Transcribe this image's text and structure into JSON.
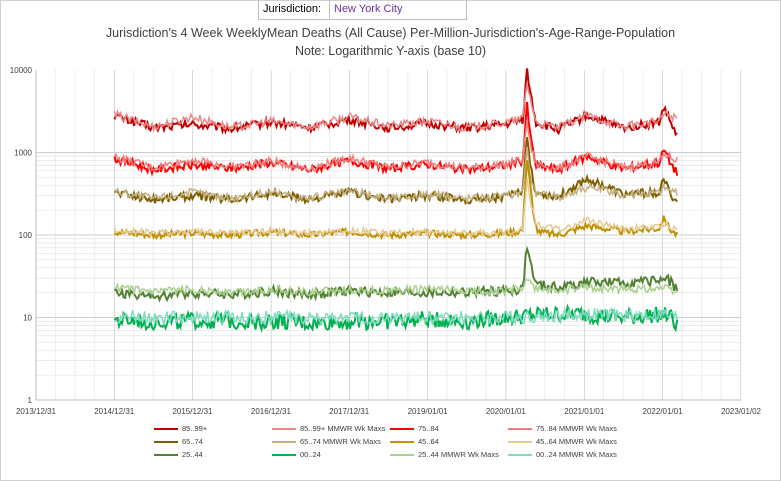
{
  "header": {
    "jurisdiction_label": "Jurisdiction:",
    "jurisdiction_value": "New York City"
  },
  "chart_data": {
    "type": "line",
    "title": "Jurisdiction's 4 Week WeeklyMean Deaths (All Cause) Per-Million-Jurisdiction's-Age-Range-Population",
    "subtitle": "Note: Logarithmic Y-axis (base 10)",
    "y_scale": "log10",
    "ylim": [
      1,
      10000
    ],
    "y_ticks": [
      "1",
      "10",
      "100",
      "1000",
      "10000"
    ],
    "xlim": [
      "2013-12-31",
      "2023-01-02"
    ],
    "x_ticks": [
      "2013/12/31",
      "2014/12/31",
      "2015/12/31",
      "2016/12/31",
      "2017/12/31",
      "2019/01/01",
      "2020/01/01",
      "2021/01/01",
      "2022/01/01",
      "2023/01/02"
    ],
    "grid": true,
    "legend_position": "bottom",
    "series": [
      {
        "name": "85..99+",
        "color": "#c00000",
        "width": 2,
        "base": 2200,
        "seasonal": 0.14,
        "noise": 0.05,
        "points": [
          [
            "2015-01-01",
            2800
          ],
          [
            "2015-07-01",
            2000
          ],
          [
            "2016-01-01",
            2200
          ],
          [
            "2016-07-01",
            1950
          ],
          [
            "2017-01-01",
            2350
          ],
          [
            "2017-07-01",
            2000
          ],
          [
            "2018-01-01",
            2500
          ],
          [
            "2018-07-01",
            2000
          ],
          [
            "2019-01-01",
            2250
          ],
          [
            "2019-07-01",
            1950
          ],
          [
            "2020-01-01",
            2200
          ],
          [
            "2020-03-20",
            2500
          ],
          [
            "2020-04-08",
            10000
          ],
          [
            "2020-04-25",
            5200
          ],
          [
            "2020-05-20",
            2300
          ],
          [
            "2020-09-01",
            1900
          ],
          [
            "2021-01-15",
            2800
          ],
          [
            "2021-07-01",
            2000
          ],
          [
            "2021-12-15",
            2300
          ],
          [
            "2022-01-10",
            3600
          ],
          [
            "2022-02-01",
            2500
          ],
          [
            "2022-03-10",
            1600
          ]
        ]
      },
      {
        "name": "85..99+ MMWR Wk Maxs",
        "color": "#e88a8a",
        "width": 1.5,
        "base": 2350,
        "seasonal": 0.14,
        "noise": 0.05,
        "points": [
          [
            "2015-01-01",
            2900
          ],
          [
            "2015-07-01",
            2050
          ],
          [
            "2016-01-01",
            2700
          ],
          [
            "2016-07-01",
            2000
          ],
          [
            "2017-01-01",
            2400
          ],
          [
            "2017-07-01",
            2050
          ],
          [
            "2018-01-01",
            2700
          ],
          [
            "2018-07-01",
            2100
          ],
          [
            "2019-01-01",
            2400
          ],
          [
            "2019-07-01",
            2000
          ],
          [
            "2020-01-01",
            2300
          ],
          [
            "2020-03-20",
            2600
          ],
          [
            "2020-04-08",
            7000
          ],
          [
            "2020-04-25",
            4500
          ],
          [
            "2020-05-20",
            2300
          ],
          [
            "2020-09-01",
            2000
          ],
          [
            "2021-01-15",
            2800
          ],
          [
            "2021-07-01",
            2050
          ],
          [
            "2021-12-15",
            2400
          ],
          [
            "2022-01-10",
            3000
          ],
          [
            "2022-03-10",
            2600
          ]
        ]
      },
      {
        "name": "75..84",
        "color": "#ff0000",
        "width": 2,
        "base": 700,
        "seasonal": 0.14,
        "noise": 0.05,
        "points": [
          [
            "2015-01-01",
            850
          ],
          [
            "2015-07-01",
            620
          ],
          [
            "2016-01-01",
            700
          ],
          [
            "2016-07-01",
            640
          ],
          [
            "2017-01-01",
            760
          ],
          [
            "2017-07-01",
            620
          ],
          [
            "2018-01-01",
            800
          ],
          [
            "2018-07-01",
            640
          ],
          [
            "2019-01-01",
            720
          ],
          [
            "2019-07-01",
            620
          ],
          [
            "2020-01-01",
            700
          ],
          [
            "2020-03-20",
            800
          ],
          [
            "2020-04-08",
            3900
          ],
          [
            "2020-04-25",
            1500
          ],
          [
            "2020-05-20",
            700
          ],
          [
            "2020-09-01",
            620
          ],
          [
            "2021-01-15",
            900
          ],
          [
            "2021-07-01",
            640
          ],
          [
            "2021-12-15",
            750
          ],
          [
            "2022-01-10",
            1100
          ],
          [
            "2022-02-01",
            800
          ],
          [
            "2022-03-10",
            560
          ]
        ]
      },
      {
        "name": "75..84 MMWR Wk Maxs",
        "color": "#f08080",
        "width": 1.5,
        "base": 740,
        "seasonal": 0.14,
        "noise": 0.05,
        "points": [
          [
            "2015-01-01",
            880
          ],
          [
            "2015-07-01",
            650
          ],
          [
            "2016-01-01",
            820
          ],
          [
            "2016-07-01",
            660
          ],
          [
            "2017-01-01",
            780
          ],
          [
            "2017-07-01",
            640
          ],
          [
            "2018-01-01",
            860
          ],
          [
            "2018-07-01",
            660
          ],
          [
            "2019-01-01",
            760
          ],
          [
            "2019-07-01",
            640
          ],
          [
            "2020-01-01",
            720
          ],
          [
            "2020-03-20",
            820
          ],
          [
            "2020-04-08",
            2500
          ],
          [
            "2020-04-25",
            1200
          ],
          [
            "2020-05-20",
            720
          ],
          [
            "2020-09-01",
            640
          ],
          [
            "2021-01-15",
            900
          ],
          [
            "2021-07-01",
            660
          ],
          [
            "2021-12-15",
            760
          ],
          [
            "2022-01-10",
            950
          ],
          [
            "2022-03-10",
            800
          ]
        ]
      },
      {
        "name": "65..74",
        "color": "#7f6000",
        "width": 2,
        "base": 300,
        "seasonal": 0.12,
        "noise": 0.05,
        "points": [
          [
            "2015-01-01",
            330
          ],
          [
            "2015-07-01",
            270
          ],
          [
            "2016-01-01",
            300
          ],
          [
            "2016-07-01",
            270
          ],
          [
            "2017-01-01",
            320
          ],
          [
            "2017-07-01",
            270
          ],
          [
            "2018-01-01",
            330
          ],
          [
            "2018-07-01",
            270
          ],
          [
            "2019-01-01",
            300
          ],
          [
            "2019-07-01",
            270
          ],
          [
            "2020-01-01",
            290
          ],
          [
            "2020-03-20",
            330
          ],
          [
            "2020-04-08",
            1800
          ],
          [
            "2020-04-25",
            700
          ],
          [
            "2020-05-20",
            320
          ],
          [
            "2020-09-01",
            290
          ],
          [
            "2021-01-15",
            480
          ],
          [
            "2021-07-01",
            310
          ],
          [
            "2021-12-15",
            330
          ],
          [
            "2022-01-10",
            470
          ],
          [
            "2022-02-01",
            330
          ],
          [
            "2022-03-10",
            250
          ]
        ]
      },
      {
        "name": "65..74 MMWR Wk Maxs",
        "color": "#c4b183",
        "width": 1.5,
        "base": 310,
        "seasonal": 0.12,
        "noise": 0.05,
        "points": [
          [
            "2015-01-01",
            340
          ],
          [
            "2015-07-01",
            280
          ],
          [
            "2016-01-01",
            330
          ],
          [
            "2016-07-01",
            280
          ],
          [
            "2017-01-01",
            330
          ],
          [
            "2017-07-01",
            280
          ],
          [
            "2018-01-01",
            340
          ],
          [
            "2018-07-01",
            280
          ],
          [
            "2019-01-01",
            310
          ],
          [
            "2019-07-01",
            280
          ],
          [
            "2020-01-01",
            300
          ],
          [
            "2020-03-20",
            340
          ],
          [
            "2020-04-08",
            1200
          ],
          [
            "2020-04-25",
            500
          ],
          [
            "2020-05-20",
            320
          ],
          [
            "2020-09-01",
            290
          ],
          [
            "2021-01-15",
            380
          ],
          [
            "2021-07-01",
            310
          ],
          [
            "2021-12-15",
            330
          ],
          [
            "2022-01-10",
            380
          ],
          [
            "2022-03-10",
            320
          ]
        ]
      },
      {
        "name": "45..64",
        "color": "#bf9000",
        "width": 2,
        "base": 105,
        "seasonal": 0.06,
        "noise": 0.04,
        "points": [
          [
            "2015-01-01",
            110
          ],
          [
            "2015-07-01",
            100
          ],
          [
            "2016-01-01",
            105
          ],
          [
            "2016-07-01",
            100
          ],
          [
            "2017-01-01",
            108
          ],
          [
            "2017-07-01",
            100
          ],
          [
            "2018-01-01",
            110
          ],
          [
            "2018-07-01",
            100
          ],
          [
            "2019-01-01",
            105
          ],
          [
            "2019-07-01",
            100
          ],
          [
            "2020-01-01",
            105
          ],
          [
            "2020-03-20",
            115
          ],
          [
            "2020-04-08",
            900
          ],
          [
            "2020-04-25",
            400
          ],
          [
            "2020-05-10",
            150
          ],
          [
            "2020-06-01",
            110
          ],
          [
            "2020-09-01",
            100
          ],
          [
            "2021-01-15",
            130
          ],
          [
            "2021-07-01",
            110
          ],
          [
            "2021-12-15",
            120
          ],
          [
            "2022-01-10",
            165
          ],
          [
            "2022-02-01",
            120
          ],
          [
            "2022-03-10",
            100
          ]
        ]
      },
      {
        "name": "45..64 MMWR Wk Maxs",
        "color": "#e6c990",
        "width": 1.5,
        "base": 110,
        "seasonal": 0.06,
        "noise": 0.04,
        "points": [
          [
            "2015-01-01",
            115
          ],
          [
            "2015-07-01",
            105
          ],
          [
            "2016-01-01",
            110
          ],
          [
            "2016-07-01",
            105
          ],
          [
            "2017-01-01",
            112
          ],
          [
            "2017-07-01",
            105
          ],
          [
            "2018-01-01",
            115
          ],
          [
            "2018-07-01",
            105
          ],
          [
            "2019-01-01",
            110
          ],
          [
            "2019-07-01",
            105
          ],
          [
            "2020-01-01",
            108
          ],
          [
            "2020-03-20",
            120
          ],
          [
            "2020-04-08",
            500
          ],
          [
            "2020-04-25",
            250
          ],
          [
            "2020-05-20",
            140
          ],
          [
            "2020-09-01",
            115
          ],
          [
            "2021-01-15",
            150
          ],
          [
            "2021-07-01",
            120
          ],
          [
            "2021-12-15",
            125
          ],
          [
            "2022-01-10",
            140
          ],
          [
            "2022-03-10",
            115
          ]
        ]
      },
      {
        "name": "25..44",
        "color": "#548235",
        "width": 2,
        "base": 19,
        "seasonal": 0.05,
        "noise": 0.06,
        "points": [
          [
            "2015-01-01",
            20
          ],
          [
            "2015-07-01",
            18
          ],
          [
            "2016-01-01",
            20
          ],
          [
            "2016-07-01",
            19
          ],
          [
            "2017-01-01",
            21
          ],
          [
            "2017-07-01",
            19
          ],
          [
            "2018-01-01",
            21
          ],
          [
            "2018-07-01",
            20
          ],
          [
            "2019-01-01",
            20
          ],
          [
            "2019-07-01",
            20
          ],
          [
            "2020-01-01",
            21
          ],
          [
            "2020-03-20",
            22
          ],
          [
            "2020-04-08",
            75
          ],
          [
            "2020-04-25",
            45
          ],
          [
            "2020-05-20",
            25
          ],
          [
            "2020-09-01",
            23
          ],
          [
            "2021-01-15",
            27
          ],
          [
            "2021-07-01",
            26
          ],
          [
            "2021-12-15",
            28
          ],
          [
            "2022-01-10",
            33
          ],
          [
            "2022-02-01",
            28
          ],
          [
            "2022-03-10",
            22
          ]
        ]
      },
      {
        "name": "00..24",
        "color": "#00b050",
        "width": 2,
        "base": 9,
        "seasonal": 0.03,
        "noise": 0.1,
        "points": [
          [
            "2015-01-01",
            9
          ],
          [
            "2015-07-01",
            9
          ],
          [
            "2016-01-01",
            9
          ],
          [
            "2016-07-01",
            9
          ],
          [
            "2017-01-01",
            9
          ],
          [
            "2017-07-01",
            8.5
          ],
          [
            "2018-01-01",
            9
          ],
          [
            "2018-07-01",
            9
          ],
          [
            "2019-01-01",
            9.5
          ],
          [
            "2019-07-01",
            9
          ],
          [
            "2020-01-01",
            10
          ],
          [
            "2020-07-01",
            11
          ],
          [
            "2021-01-01",
            11
          ],
          [
            "2021-07-01",
            10
          ],
          [
            "2022-01-01",
            11
          ],
          [
            "2022-02-15",
            10
          ],
          [
            "2022-03-10",
            7.5
          ]
        ]
      },
      {
        "name": "25..44 MMWR Wk Maxs",
        "color": "#a9d08e",
        "width": 1.5,
        "base": 21,
        "seasonal": 0.05,
        "noise": 0.05,
        "points": [
          [
            "2015-01-01",
            23
          ],
          [
            "2015-07-01",
            20
          ],
          [
            "2016-01-01",
            22
          ],
          [
            "2016-07-01",
            20
          ],
          [
            "2017-01-01",
            22
          ],
          [
            "2017-07-01",
            20
          ],
          [
            "2018-01-01",
            22
          ],
          [
            "2018-07-01",
            21
          ],
          [
            "2019-01-01",
            22
          ],
          [
            "2019-07-01",
            21
          ],
          [
            "2020-01-01",
            21
          ],
          [
            "2020-03-20",
            23
          ],
          [
            "2020-04-08",
            30
          ],
          [
            "2020-04-25",
            25
          ],
          [
            "2020-05-20",
            22
          ],
          [
            "2020-09-01",
            21
          ],
          [
            "2021-01-15",
            23
          ],
          [
            "2021-07-01",
            22
          ],
          [
            "2021-12-15",
            23
          ],
          [
            "2022-01-10",
            23
          ],
          [
            "2022-03-10",
            20
          ]
        ]
      },
      {
        "name": "00..24 MMWR Wk Maxs",
        "color": "#7fdcc0",
        "width": 1.5,
        "base": 10,
        "seasonal": 0.03,
        "noise": 0.08,
        "points": [
          [
            "2015-01-01",
            10
          ],
          [
            "2015-07-01",
            10
          ],
          [
            "2016-01-01",
            10
          ],
          [
            "2016-07-01",
            10
          ],
          [
            "2017-01-01",
            10
          ],
          [
            "2017-07-01",
            10
          ],
          [
            "2018-01-01",
            10
          ],
          [
            "2018-07-01",
            10
          ],
          [
            "2019-01-01",
            10
          ],
          [
            "2019-07-01",
            10
          ],
          [
            "2020-01-01",
            10
          ],
          [
            "2020-07-01",
            10.5
          ],
          [
            "2021-01-01",
            11
          ],
          [
            "2021-07-01",
            10.5
          ],
          [
            "2022-01-01",
            11
          ],
          [
            "2022-03-10",
            10
          ]
        ]
      }
    ]
  }
}
